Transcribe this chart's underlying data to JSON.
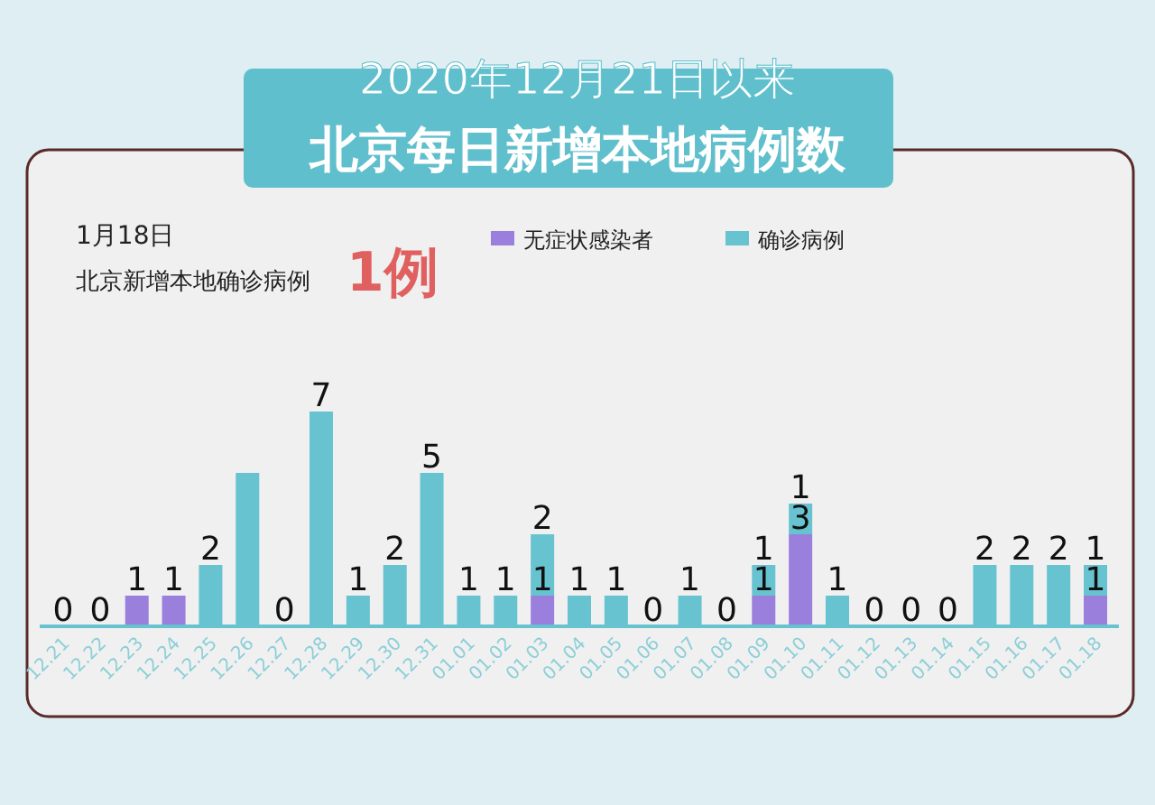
{
  "chart_data": {
    "type": "bar",
    "stacked": true,
    "title": "2020年12月21日以来",
    "subtitle": "北京每日新增本地病例数",
    "annotations": [
      "1月18日",
      "北京新增本地确诊病例",
      "1例"
    ],
    "legend": "top",
    "categories": [
      "12.21",
      "12.22",
      "12.23",
      "12.24",
      "12.25",
      "12.26",
      "12.27",
      "12.28",
      "12.29",
      "12.30",
      "12.31",
      "01.01",
      "01.02",
      "01.03",
      "01.04",
      "01.05",
      "01.06",
      "01.07",
      "01.08",
      "01.09",
      "01.10",
      "01.11",
      "01.12",
      "01.13",
      "01.14",
      "01.15",
      "01.16",
      "01.17",
      "01.18"
    ],
    "series": [
      {
        "name": "无症状感染者",
        "color": "#9b7fdc",
        "values": [
          0,
          0,
          1,
          1,
          0,
          0,
          0,
          0,
          0,
          0,
          0,
          0,
          0,
          1,
          0,
          0,
          0,
          0,
          0,
          1,
          3,
          0,
          0,
          0,
          0,
          0,
          0,
          0,
          1
        ],
        "value_labels": [
          null,
          null,
          "1",
          "1",
          null,
          null,
          null,
          null,
          null,
          null,
          null,
          null,
          null,
          "1",
          null,
          null,
          null,
          null,
          null,
          "1",
          "3",
          null,
          null,
          null,
          null,
          null,
          null,
          null,
          "1"
        ]
      },
      {
        "name": "确诊病例",
        "color": "#68c3d0",
        "values": [
          0,
          0,
          0,
          0,
          2,
          5,
          0,
          7,
          1,
          2,
          5,
          1,
          1,
          2,
          1,
          1,
          0,
          1,
          0,
          1,
          1,
          1,
          0,
          0,
          0,
          2,
          2,
          2,
          1
        ],
        "value_labels": [
          "0",
          "0",
          null,
          null,
          "2",
          null,
          "0",
          "7",
          "1",
          "2",
          "5",
          "1",
          "1",
          "2",
          "1",
          "1",
          "0",
          "1",
          "0",
          "1",
          "1",
          "1",
          "0",
          "0",
          "0",
          "2",
          "2",
          "2",
          "1"
        ]
      }
    ]
  }
}
